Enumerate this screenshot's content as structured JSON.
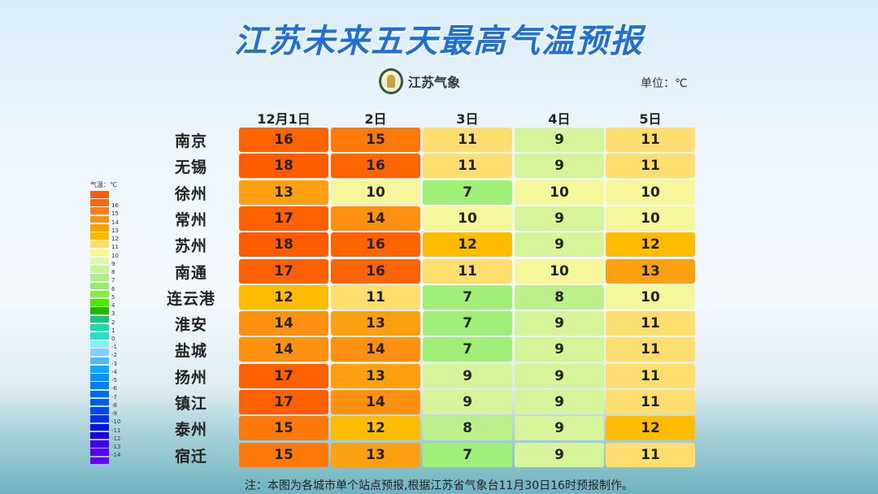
{
  "title": "江苏未来五天最高气温预报",
  "logo_text": "江苏气象",
  "unit": "单位：℃",
  "columns": [
    "12月1日",
    "2日",
    "3日",
    "4日",
    "5日"
  ],
  "rows": [
    {
      "city": "南京",
      "values": [
        16,
        15,
        11,
        9,
        11
      ]
    },
    {
      "city": "无锡",
      "values": [
        18,
        16,
        11,
        9,
        11
      ]
    },
    {
      "city": "徐州",
      "values": [
        13,
        10,
        7,
        10,
        10
      ]
    },
    {
      "city": "常州",
      "values": [
        17,
        14,
        10,
        9,
        10
      ]
    },
    {
      "city": "苏州",
      "values": [
        18,
        16,
        12,
        9,
        12
      ]
    },
    {
      "city": "南通",
      "values": [
        17,
        16,
        11,
        10,
        13
      ]
    },
    {
      "city": "连云港",
      "values": [
        12,
        11,
        7,
        8,
        10
      ]
    },
    {
      "city": "淮安",
      "values": [
        14,
        13,
        7,
        9,
        11
      ]
    },
    {
      "city": "盐城",
      "values": [
        14,
        14,
        7,
        9,
        11
      ]
    },
    {
      "city": "扬州",
      "values": [
        17,
        13,
        9,
        9,
        11
      ]
    },
    {
      "city": "镇江",
      "values": [
        17,
        14,
        9,
        9,
        11
      ]
    },
    {
      "city": "泰州",
      "values": [
        15,
        12,
        8,
        9,
        12
      ]
    },
    {
      "city": "宿迁",
      "values": [
        15,
        13,
        7,
        9,
        11
      ]
    }
  ],
  "legend": {
    "title": "气温：℃",
    "swatches": [
      {
        "color": "#ff5a00",
        "label": ""
      },
      {
        "color": "#ff6a00",
        "label": "16"
      },
      {
        "color": "#ff7d0a",
        "label": "15"
      },
      {
        "color": "#ff9010",
        "label": "14"
      },
      {
        "color": "#ffa000",
        "label": "13"
      },
      {
        "color": "#ffb800",
        "label": "12"
      },
      {
        "color": "#ffdc6e",
        "label": "11"
      },
      {
        "color": "#f8f890",
        "label": "10"
      },
      {
        "color": "#e0f8a0",
        "label": "9"
      },
      {
        "color": "#c8f590",
        "label": "8"
      },
      {
        "color": "#aef080",
        "label": "7"
      },
      {
        "color": "#98ee6a",
        "label": "6"
      },
      {
        "color": "#80f040",
        "label": "5"
      },
      {
        "color": "#50e800",
        "label": "4"
      },
      {
        "color": "#22b800",
        "label": "3"
      },
      {
        "color": "#10c880",
        "label": "2"
      },
      {
        "color": "#10e0a0",
        "label": "1"
      },
      {
        "color": "#18e8c8",
        "label": "0"
      },
      {
        "color": "#80f4ff",
        "label": "-1"
      },
      {
        "color": "#80d0ff",
        "label": "-2"
      },
      {
        "color": "#50b8ff",
        "label": "-3"
      },
      {
        "color": "#10a8ff",
        "label": "-4"
      },
      {
        "color": "#0890ff",
        "label": "-5"
      },
      {
        "color": "#0080ff",
        "label": "-6"
      },
      {
        "color": "#0068ff",
        "label": "-7"
      },
      {
        "color": "#0058ff",
        "label": "-8"
      },
      {
        "color": "#0048f8",
        "label": "-9"
      },
      {
        "color": "#0030f0",
        "label": "-10"
      },
      {
        "color": "#0010e8",
        "label": "-11"
      },
      {
        "color": "#2000e0",
        "label": "-12"
      },
      {
        "color": "#4000e8",
        "label": "-13"
      },
      {
        "color": "#5800f0",
        "label": "-14"
      },
      {
        "color": "#6800f8",
        "label": ""
      }
    ]
  },
  "colors": {
    "18": "#ff5c00",
    "17": "#ff6000",
    "16": "#ff6400",
    "15": "#ff7a0a",
    "14": "#ff9010",
    "13": "#ffa010",
    "12": "#ffbb00",
    "11": "#ffde70",
    "10": "#f6f79a",
    "9": "#d6f49a",
    "8": "#bbf08a",
    "7": "#9fef78"
  },
  "footer": "注：本图为各城市单个站点预报,根据江苏省气象台11月30日16时预报制作。"
}
